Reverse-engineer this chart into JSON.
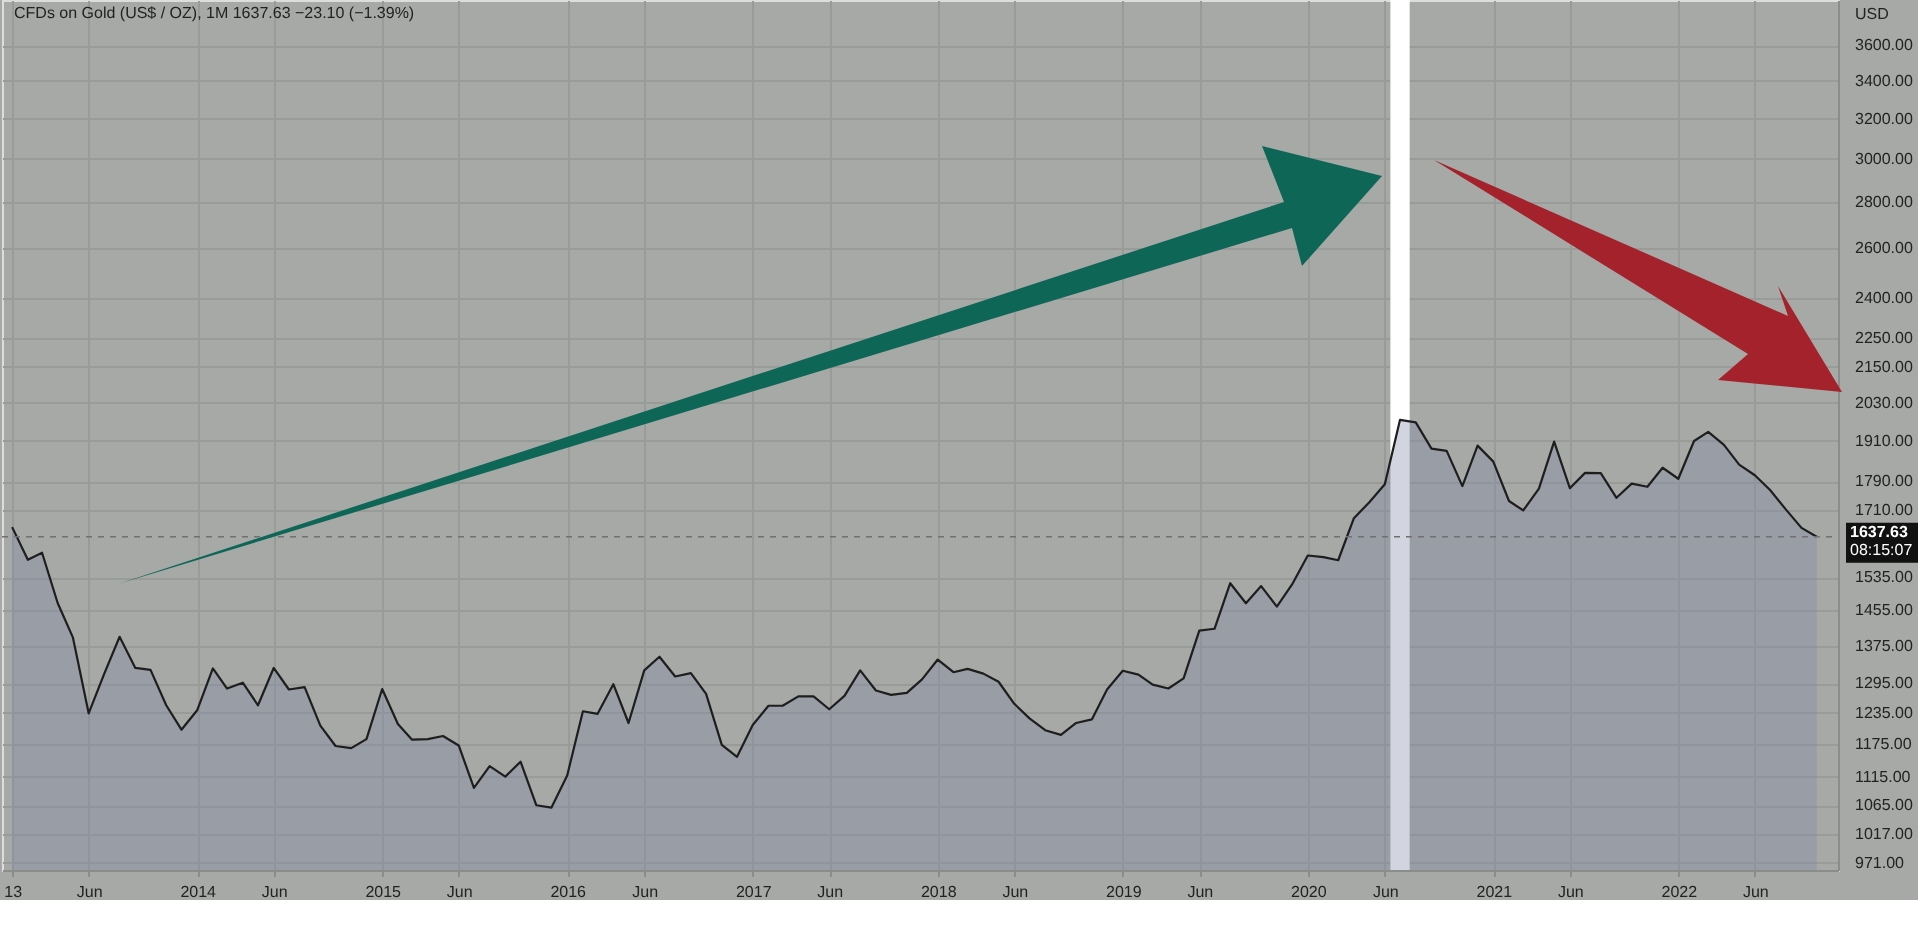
{
  "chart_data": {
    "type": "area",
    "title": "CFDs on Gold (US$ / OZ), 1M  1637.63  −23.10 (−1.39%)",
    "ylabel": "USD",
    "x": [
      "2013-01",
      "2013-02",
      "2013-03",
      "2013-04",
      "2013-05",
      "2013-06",
      "2013-07",
      "2013-08",
      "2013-09",
      "2013-10",
      "2013-11",
      "2013-12",
      "2014-01",
      "2014-02",
      "2014-03",
      "2014-04",
      "2014-05",
      "2014-06",
      "2014-07",
      "2014-08",
      "2014-09",
      "2014-10",
      "2014-11",
      "2014-12",
      "2015-01",
      "2015-02",
      "2015-03",
      "2015-04",
      "2015-05",
      "2015-06",
      "2015-07",
      "2015-08",
      "2015-09",
      "2015-10",
      "2015-11",
      "2015-12",
      "2016-01",
      "2016-02",
      "2016-03",
      "2016-04",
      "2016-05",
      "2016-06",
      "2016-07",
      "2016-08",
      "2016-09",
      "2016-10",
      "2016-11",
      "2016-12",
      "2017-01",
      "2017-02",
      "2017-03",
      "2017-04",
      "2017-05",
      "2017-06",
      "2017-07",
      "2017-08",
      "2017-09",
      "2017-10",
      "2017-11",
      "2017-12",
      "2018-01",
      "2018-02",
      "2018-03",
      "2018-04",
      "2018-05",
      "2018-06",
      "2018-07",
      "2018-08",
      "2018-09",
      "2018-10",
      "2018-11",
      "2018-12",
      "2019-01",
      "2019-02",
      "2019-03",
      "2019-04",
      "2019-05",
      "2019-06",
      "2019-07",
      "2019-08",
      "2019-09",
      "2019-10",
      "2019-11",
      "2019-12",
      "2020-01",
      "2020-02",
      "2020-03",
      "2020-04",
      "2020-05",
      "2020-06",
      "2020-07",
      "2020-08",
      "2020-09",
      "2020-10",
      "2020-11",
      "2020-12",
      "2021-01",
      "2021-02",
      "2021-03",
      "2021-04",
      "2021-05",
      "2021-06",
      "2021-07",
      "2021-08",
      "2021-09",
      "2021-10",
      "2021-11",
      "2021-12",
      "2022-01",
      "2022-02",
      "2022-03",
      "2022-04",
      "2022-05",
      "2022-06",
      "2022-07",
      "2022-08",
      "2022-09",
      "2022-10"
    ],
    "series": [
      {
        "color": "#1e1e1e",
        "values": [
          1663,
          1578,
          1596,
          1472,
          1393,
          1234,
          1313,
          1395,
          1327,
          1323,
          1250,
          1202,
          1240,
          1326,
          1284,
          1296,
          1250,
          1327,
          1282,
          1287,
          1210,
          1171,
          1167,
          1184,
          1283,
          1213,
          1183,
          1184,
          1190,
          1172,
          1095,
          1134,
          1115,
          1142,
          1065,
          1061,
          1117,
          1238,
          1233,
          1293,
          1215,
          1322,
          1351,
          1309,
          1316,
          1273,
          1173,
          1151,
          1211,
          1249,
          1249,
          1268,
          1268,
          1242,
          1269,
          1322,
          1280,
          1271,
          1275,
          1303,
          1345,
          1318,
          1325,
          1315,
          1298,
          1253,
          1224,
          1201,
          1192,
          1215,
          1222,
          1282,
          1321,
          1313,
          1292,
          1284,
          1305,
          1409,
          1413,
          1520,
          1472,
          1513,
          1464,
          1517,
          1589,
          1585,
          1577,
          1687,
          1730,
          1781,
          1975,
          1967,
          1886,
          1879,
          1776,
          1895,
          1847,
          1734,
          1708,
          1769,
          1907,
          1770,
          1814,
          1813,
          1743,
          1783,
          1774,
          1829,
          1797,
          1909,
          1937,
          1897,
          1838,
          1807,
          1765,
          1711,
          1661,
          1637.63
        ]
      }
    ],
    "xlim": [
      "2012-12-12",
      "2022-11-12"
    ],
    "xticks": [
      {
        "value": "2013-01",
        "label": "13"
      },
      {
        "value": "2013-06",
        "label": "Jun"
      },
      {
        "value": "2014-01",
        "label": "2014"
      },
      {
        "value": "2014-06",
        "label": "Jun"
      },
      {
        "value": "2015-01",
        "label": "2015"
      },
      {
        "value": "2015-06",
        "label": "Jun"
      },
      {
        "value": "2016-01",
        "label": "2016"
      },
      {
        "value": "2016-06",
        "label": "Jun"
      },
      {
        "value": "2017-01",
        "label": "2017"
      },
      {
        "value": "2017-06",
        "label": "Jun"
      },
      {
        "value": "2018-01",
        "label": "2018"
      },
      {
        "value": "2018-06",
        "label": "Jun"
      },
      {
        "value": "2019-01",
        "label": "2019"
      },
      {
        "value": "2019-06",
        "label": "Jun"
      },
      {
        "value": "2020-01",
        "label": "2020"
      },
      {
        "value": "2020-06",
        "label": "Jun"
      },
      {
        "value": "2021-01",
        "label": "2021"
      },
      {
        "value": "2021-06",
        "label": "Jun"
      },
      {
        "value": "2022-01",
        "label": "2022"
      },
      {
        "value": "2022-06",
        "label": "Jun"
      }
    ],
    "ylim": [
      960,
      3870
    ],
    "log": "y",
    "yticks": [
      {
        "value": 971,
        "label": "971.00"
      },
      {
        "value": 1017,
        "label": "1017.00"
      },
      {
        "value": 1065,
        "label": "1065.00"
      },
      {
        "value": 1115,
        "label": "1115.00"
      },
      {
        "value": 1175,
        "label": "1175.00"
      },
      {
        "value": 1235,
        "label": "1235.00"
      },
      {
        "value": 1295,
        "label": "1295.00"
      },
      {
        "value": 1375,
        "label": "1375.00"
      },
      {
        "value": 1455,
        "label": "1455.00"
      },
      {
        "value": 1535,
        "label": "1535.00"
      },
      {
        "value": 1710,
        "label": "1710.00"
      },
      {
        "value": 1790,
        "label": "1790.00"
      },
      {
        "value": 1910,
        "label": "1910.00"
      },
      {
        "value": 2030,
        "label": "2030.00"
      },
      {
        "value": 2150,
        "label": "2150.00"
      },
      {
        "value": 2250,
        "label": "2250.00"
      },
      {
        "value": 2400,
        "label": "2400.00"
      },
      {
        "value": 2600,
        "label": "2600.00"
      },
      {
        "value": 2800,
        "label": "2800.00"
      },
      {
        "value": 3000,
        "label": "3000.00"
      },
      {
        "value": 3200,
        "label": "3200.00"
      },
      {
        "value": 3400,
        "label": "3400.00"
      },
      {
        "value": 3600,
        "label": "3600.00"
      }
    ],
    "grid": true,
    "ref_lines": [
      {
        "axis": "y",
        "value": 1637.63,
        "label": "1637.63",
        "color": "#6e716e",
        "line_style": "dashed"
      }
    ],
    "bands": [
      {
        "axis": "x",
        "from": "2020-06-12",
        "to": "2020-07-20",
        "color": "#ffffff"
      }
    ],
    "annotations": [
      "08:15:07"
    ]
  }
}
